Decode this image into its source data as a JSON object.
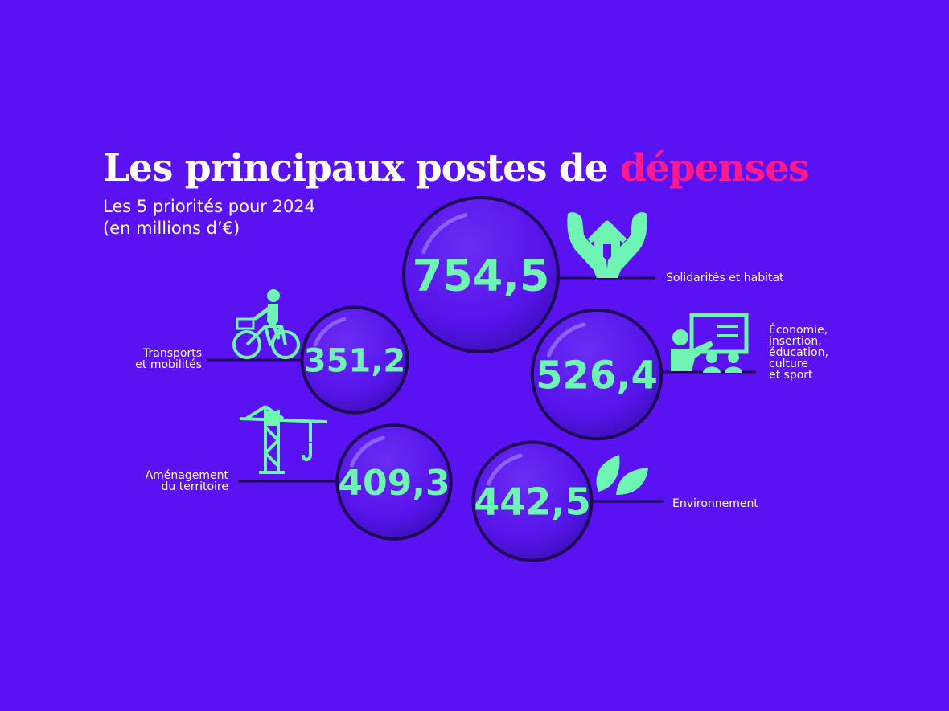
{
  "title": {
    "main": "Les principaux postes de",
    "accent": "dépenses"
  },
  "subtitle": {
    "line1": "Les 5 priorités pour 2024",
    "line2": "(en millions d’€)"
  },
  "colors": {
    "background": "#5a12f2",
    "accent": "#ff1a8c",
    "value": "#6ff5b3",
    "icon": "#6ff5b3",
    "bubble": "#5a12f2",
    "bubble_outline": "#1c0a55"
  },
  "chart_data": {
    "type": "bubble",
    "title": "Les principaux postes de dépenses",
    "subtitle": "Les 5 priorités pour 2024 (en millions d’€)",
    "categories": [
      "Solidarités et habitat",
      "Économie, insertion, éducation, culture et sport",
      "Environnement",
      "Aménagement du territoire",
      "Transports et mobilités"
    ],
    "values": [
      754.5,
      526.4,
      442.5,
      409.3,
      351.2
    ],
    "value_labels": [
      "754,5",
      "526,4",
      "442,5",
      "409,3",
      "351,2"
    ],
    "label_lines": [
      [
        "Solidarités et habitat"
      ],
      [
        "Économie,",
        "insertion,",
        "éducation,",
        "culture",
        "et sport"
      ],
      [
        "Environnement"
      ],
      [
        "Aménagement",
        "du territoire"
      ],
      [
        "Transports",
        "et mobilités"
      ]
    ],
    "icons": [
      "house-hands-icon",
      "teacher-board-icon",
      "leaves-icon",
      "crane-icon",
      "bicycle-icon"
    ],
    "unit": "millions d’€"
  }
}
